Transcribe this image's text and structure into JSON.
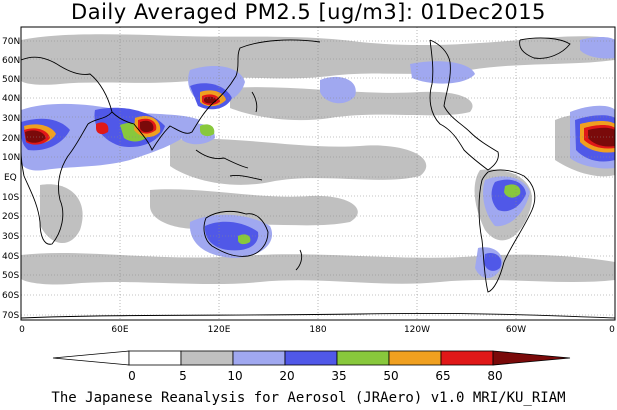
{
  "title": "Daily Averaged PM2.5 [ug/m3]: 01Dec2015",
  "lat_labels": [
    "70N",
    "60N",
    "50N",
    "40N",
    "30N",
    "20N",
    "10N",
    "EQ",
    "10S",
    "20S",
    "30S",
    "40S",
    "50S",
    "60S",
    "70S"
  ],
  "lon_labels": [
    "0",
    "60E",
    "120E",
    "180",
    "120W",
    "60W",
    "0"
  ],
  "legend": {
    "thresholds": [
      "0",
      "5",
      "10",
      "20",
      "35",
      "50",
      "65",
      "80"
    ],
    "colors": [
      "#ffffff",
      "#c0c0c0",
      "#a0a8f0",
      "#5058e8",
      "#88c83c",
      "#f0a020",
      "#e01818",
      "#7a0a0a"
    ]
  },
  "footer": "The Japanese Reanalysis for Aerosol (JRAero) v1.0 MRI/KU_RIAM"
}
